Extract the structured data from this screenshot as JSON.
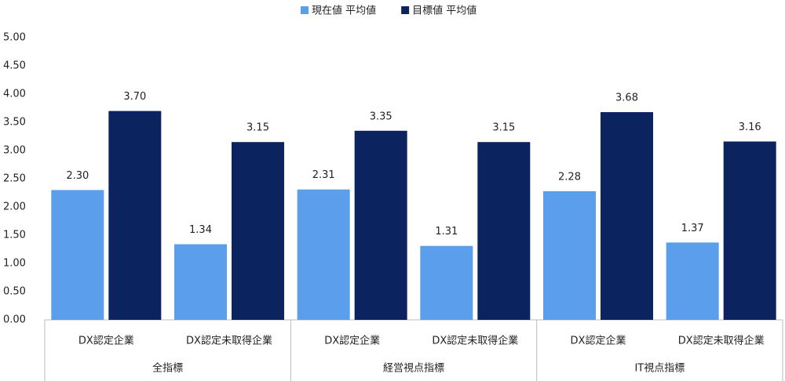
{
  "chart_data": {
    "type": "bar",
    "categories": [
      "DX認定企業",
      "DX認定未取得企業",
      "DX認定企業",
      "DX認定未取得企業",
      "DX認定企業",
      "DX認定未取得企業"
    ],
    "category_groups": [
      "全指標",
      "経営視点指標",
      "IT視点指標"
    ],
    "series": [
      {
        "name": "現在値 平均値",
        "color": "#5b9fec",
        "values": [
          2.3,
          1.34,
          2.31,
          1.31,
          2.28,
          1.37
        ],
        "value_labels": [
          "2.30",
          "1.34",
          "2.31",
          "1.31",
          "2.28",
          "1.37"
        ]
      },
      {
        "name": "目標値 平均値",
        "color": "#0b2460",
        "values": [
          3.7,
          3.15,
          3.35,
          3.15,
          3.68,
          3.16
        ],
        "value_labels": [
          "3.70",
          "3.15",
          "3.35",
          "3.15",
          "3.68",
          "3.16"
        ]
      }
    ],
    "ylim": [
      0,
      5
    ],
    "yticks": [
      {
        "value": 0,
        "label": "0.00"
      },
      {
        "value": 0.5,
        "label": "0.50"
      },
      {
        "value": 1,
        "label": "1.00"
      },
      {
        "value": 1.5,
        "label": "1.50"
      },
      {
        "value": 2,
        "label": "2.00"
      },
      {
        "value": 2.5,
        "label": "2.50"
      },
      {
        "value": 3,
        "label": "3.00"
      },
      {
        "value": 3.5,
        "label": "3.50"
      },
      {
        "value": 4,
        "label": "4.00"
      },
      {
        "value": 4.5,
        "label": "4.50"
      },
      {
        "value": 5,
        "label": "5.00"
      }
    ],
    "grid": false,
    "legend": "top"
  }
}
